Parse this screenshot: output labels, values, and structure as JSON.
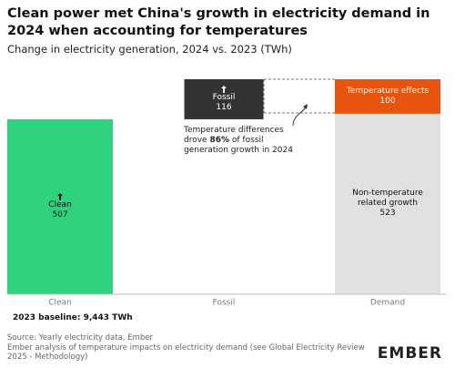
{
  "chart_data": {
    "type": "waterfall",
    "title": "Clean power met China's growth in electricity demand in 2024 when accounting for temperatures",
    "subtitle": "Change in electricity generation, 2024 vs. 2023 (TWh)",
    "categories": [
      "Clean",
      "Fossil",
      "Demand"
    ],
    "series": [
      {
        "name": "Clean",
        "color": "#2fd37e",
        "label_color": "#111111",
        "values": [
          507,
          null,
          null
        ]
      },
      {
        "name": "Fossil",
        "color": "#333333",
        "label_color": "#ffffff",
        "values": [
          null,
          116,
          null
        ]
      },
      {
        "name": "Non-temperature related growth",
        "color": "#e1e1e1",
        "label_color": "#111111",
        "values": [
          null,
          null,
          523
        ]
      },
      {
        "name": "Temperature effects",
        "color": "#e6540f",
        "label_color": "#ffffff",
        "values": [
          null,
          null,
          100
        ]
      }
    ],
    "annotation": [
      "Temperature differences",
      "drove",
      "86%",
      "of fossil",
      "generation growth in 2024"
    ],
    "baseline_note": "2023 baseline: 9,443 TWh",
    "source": [
      "Source: Yearly electricity data, Ember",
      "Ember analysis of temperature impacts on electricity demand (see Global Electricity Review 2025 - Methodology)"
    ],
    "logo": "EMBER"
  }
}
